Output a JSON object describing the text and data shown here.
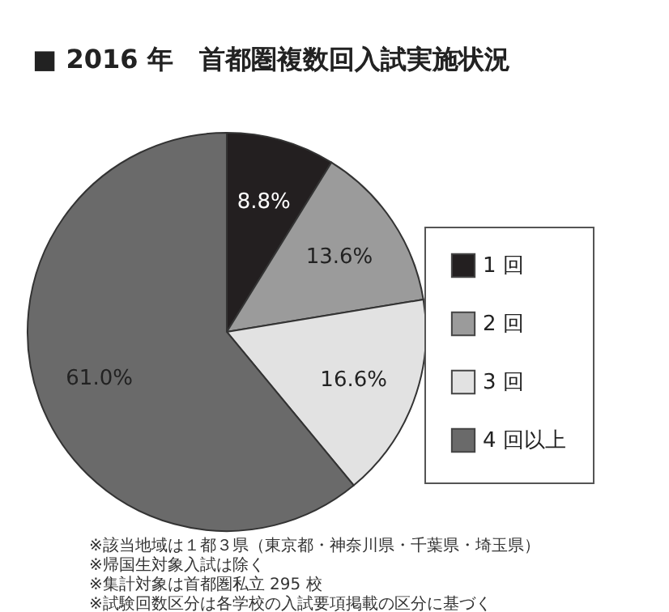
{
  "chart_data": {
    "type": "pie",
    "title": "■ 2016 年　首都圏複数回入試実施状況",
    "categories": [
      "1 回",
      "2 回",
      "3 回",
      "4 回以上"
    ],
    "values": [
      8.8,
      13.6,
      16.6,
      61.0
    ],
    "value_labels": [
      "8.8%",
      "13.6%",
      "16.6%",
      "61.0%"
    ],
    "colors": [
      "#231f20",
      "#9b9b9b",
      "#e2e2e2",
      "#6a6a6a"
    ],
    "legend": "right",
    "annotations": [
      "※該当地域は１都３県（東京都・神奈川県・千葉県・埼玉県）",
      "※帰国生対象入試は除く",
      "※集計対象は首都圏私立 295 校",
      "※試験回数区分は各学校の入試要項掲載の区分に基づく"
    ]
  }
}
